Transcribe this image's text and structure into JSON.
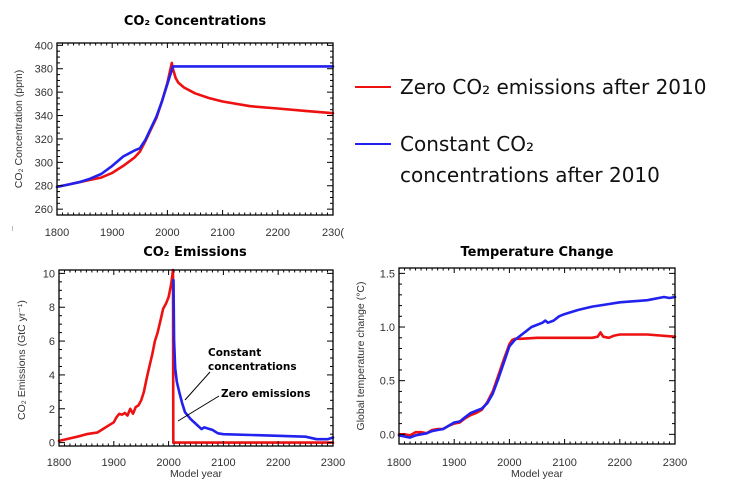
{
  "colors": {
    "zero_emissions": "#ee1111",
    "constant_concentrations": "#2222ee",
    "frame": "#000000"
  },
  "legend": {
    "items": [
      {
        "series": "zero_emissions",
        "lines": [
          "Zero CO₂ emissions after 2010"
        ]
      },
      {
        "series": "constant_concentrations",
        "lines": [
          "Constant CO₂",
          "concentrations after 2010"
        ]
      }
    ]
  },
  "chart_data": [
    {
      "id": "concentrations",
      "type": "line",
      "title": "CO₂ Concentrations",
      "xlabel": "",
      "ylabel": "CO₂ Concentration (ppm)",
      "xlim": [
        1800,
        2300
      ],
      "ylim": [
        255,
        402
      ],
      "xticks": [
        1800,
        1900,
        2000,
        2100,
        2200,
        2300
      ],
      "xtick_labels": [
        "1800",
        "1900",
        "2000",
        "2100",
        "2200",
        "230("
      ],
      "yticks": [
        260,
        280,
        300,
        320,
        340,
        360,
        380,
        400
      ],
      "series": [
        {
          "name": "Zero CO₂ emissions after 2010",
          "key": "zero_emissions",
          "x": [
            1800,
            1820,
            1840,
            1860,
            1880,
            1900,
            1920,
            1940,
            1950,
            1960,
            1970,
            1980,
            1990,
            2000,
            2008,
            2010,
            2015,
            2020,
            2030,
            2050,
            2075,
            2100,
            2150,
            2200,
            2250,
            2300
          ],
          "y": [
            279,
            281,
            283,
            285,
            287,
            291,
            297,
            304,
            309,
            318,
            328,
            338,
            352,
            368,
            385,
            380,
            372,
            368,
            364,
            359,
            355,
            352,
            348,
            346,
            344,
            342
          ]
        },
        {
          "name": "Constant CO₂ concentrations after 2010",
          "key": "constant_concentrations",
          "x": [
            1800,
            1820,
            1840,
            1860,
            1880,
            1900,
            1920,
            1940,
            1950,
            1960,
            1970,
            1980,
            1990,
            2000,
            2010,
            2100,
            2200,
            2300
          ],
          "y": [
            279,
            281,
            283,
            286,
            290,
            297,
            305,
            310,
            312,
            319,
            329,
            339,
            352,
            367,
            382,
            382,
            382,
            382
          ]
        }
      ]
    },
    {
      "id": "emissions",
      "type": "line",
      "title": "CO₂ Emissions",
      "xlabel": "Model year",
      "ylabel": "CO₂ Emissions (GtC yr⁻¹)",
      "xlim": [
        1800,
        2300
      ],
      "ylim": [
        -0.2,
        10.2
      ],
      "xticks": [
        1800,
        1900,
        2000,
        2100,
        2200,
        2300
      ],
      "xtick_labels": [
        "1800",
        "1900",
        "2000",
        "2100",
        "2200",
        "2300"
      ],
      "yticks": [
        0,
        2,
        4,
        6,
        8,
        10
      ],
      "annotations": [
        {
          "lines": [
            "Constant",
            "concentrations"
          ],
          "points_to": "constant_concentrations",
          "at": [
            2030,
            2.3
          ]
        },
        {
          "lines": [
            "Zero emissions"
          ],
          "points_to": "zero_emissions",
          "at": [
            2012,
            1.3
          ]
        }
      ],
      "series": [
        {
          "name": "Zero CO₂ emissions after 2010",
          "key": "zero_emissions",
          "x": [
            1800,
            1820,
            1840,
            1850,
            1860,
            1870,
            1880,
            1890,
            1900,
            1905,
            1910,
            1915,
            1920,
            1925,
            1930,
            1935,
            1940,
            1945,
            1950,
            1955,
            1960,
            1965,
            1970,
            1975,
            1980,
            1985,
            1990,
            1995,
            2000,
            2005,
            2008,
            2008.5,
            2009,
            2300
          ],
          "y": [
            0.1,
            0.25,
            0.4,
            0.5,
            0.55,
            0.6,
            0.8,
            1.0,
            1.2,
            1.5,
            1.7,
            1.65,
            1.75,
            1.6,
            2.0,
            1.7,
            2.1,
            2.2,
            2.5,
            3.0,
            3.8,
            4.5,
            5.2,
            6.0,
            6.5,
            7.2,
            7.9,
            8.2,
            8.6,
            9.4,
            10.2,
            0,
            0,
            0
          ]
        },
        {
          "name": "Constant CO₂ concentrations after 2010",
          "key": "constant_concentrations",
          "x": [
            2009,
            2010,
            2012,
            2015,
            2020,
            2025,
            2030,
            2040,
            2050,
            2060,
            2065,
            2070,
            2080,
            2090,
            2100,
            2150,
            2200,
            2250,
            2270,
            2280,
            2290,
            2300
          ],
          "y": [
            9.6,
            6.0,
            4.4,
            3.6,
            2.9,
            2.3,
            1.8,
            1.4,
            1.1,
            0.8,
            0.9,
            0.85,
            0.75,
            0.55,
            0.5,
            0.45,
            0.4,
            0.35,
            0.2,
            0.2,
            0.2,
            0.3
          ]
        }
      ]
    },
    {
      "id": "temperature",
      "type": "line",
      "title": "Temperature Change",
      "xlabel": "Model year",
      "ylabel": "Global temperature change (°C)",
      "xlim": [
        1800,
        2300
      ],
      "ylim": [
        -0.09,
        1.55
      ],
      "xticks": [
        1800,
        1900,
        2000,
        2100,
        2200,
        2300
      ],
      "xtick_labels": [
        "1800",
        "1900",
        "2000",
        "2100",
        "2200",
        "2300"
      ],
      "yticks": [
        0.0,
        0.5,
        1.0,
        1.5
      ],
      "ytick_labels": [
        "0.0",
        "0.5",
        "1.0",
        "1.5"
      ],
      "series": [
        {
          "name": "Zero CO₂ emissions after 2010",
          "key": "zero_emissions",
          "x": [
            1800,
            1810,
            1820,
            1830,
            1840,
            1850,
            1860,
            1870,
            1880,
            1890,
            1900,
            1910,
            1920,
            1930,
            1940,
            1950,
            1960,
            1970,
            1980,
            1990,
            2000,
            2005,
            2010,
            2020,
            2050,
            2100,
            2150,
            2160,
            2165,
            2170,
            2180,
            2190,
            2200,
            2250,
            2300
          ],
          "y": [
            0.0,
            0.0,
            -0.01,
            0.02,
            0.02,
            0.01,
            0.04,
            0.05,
            0.05,
            0.08,
            0.1,
            0.11,
            0.15,
            0.18,
            0.2,
            0.23,
            0.3,
            0.4,
            0.55,
            0.7,
            0.84,
            0.88,
            0.89,
            0.89,
            0.9,
            0.9,
            0.9,
            0.91,
            0.95,
            0.91,
            0.9,
            0.92,
            0.93,
            0.93,
            0.91
          ]
        },
        {
          "name": "Constant CO₂ concentrations after 2010",
          "key": "constant_concentrations",
          "x": [
            1800,
            1810,
            1820,
            1830,
            1840,
            1850,
            1860,
            1870,
            1880,
            1890,
            1900,
            1910,
            1920,
            1930,
            1940,
            1950,
            1960,
            1970,
            1980,
            1990,
            2000,
            2010,
            2020,
            2030,
            2040,
            2050,
            2060,
            2065,
            2070,
            2080,
            2090,
            2100,
            2125,
            2150,
            2175,
            2200,
            2250,
            2280,
            2290,
            2300
          ],
          "y": [
            -0.01,
            -0.02,
            -0.03,
            -0.01,
            0.0,
            0.01,
            0.03,
            0.04,
            0.05,
            0.08,
            0.11,
            0.12,
            0.16,
            0.2,
            0.22,
            0.24,
            0.29,
            0.38,
            0.52,
            0.67,
            0.82,
            0.88,
            0.92,
            0.96,
            1.0,
            1.02,
            1.04,
            1.06,
            1.04,
            1.06,
            1.1,
            1.12,
            1.16,
            1.19,
            1.21,
            1.23,
            1.25,
            1.28,
            1.27,
            1.28
          ]
        }
      ]
    }
  ]
}
